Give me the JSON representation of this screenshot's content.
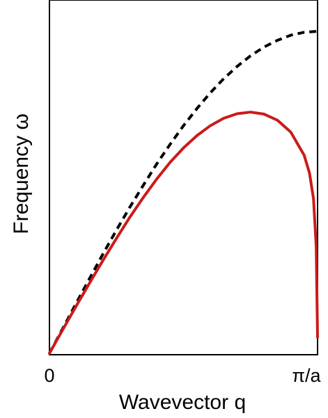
{
  "chart_data": {
    "type": "line",
    "title": "",
    "xlabel": "Wavevector q",
    "ylabel": "Frequency ω",
    "x_ticks": [
      "0",
      "π/a"
    ],
    "xlim": [
      0,
      1
    ],
    "ylim": [
      0,
      1
    ],
    "grid": false,
    "legend": "none",
    "series": [
      {
        "style": "dashed",
        "color": "#000000",
        "x": [
          0.0,
          0.05,
          0.1,
          0.15,
          0.2,
          0.25,
          0.3,
          0.35,
          0.4,
          0.45,
          0.5,
          0.55,
          0.6,
          0.65,
          0.7,
          0.75,
          0.8,
          0.85,
          0.9,
          0.95,
          1.0
        ],
        "y": [
          0.0,
          0.078,
          0.156,
          0.233,
          0.309,
          0.383,
          0.454,
          0.522,
          0.588,
          0.649,
          0.707,
          0.76,
          0.809,
          0.853,
          0.891,
          0.924,
          0.951,
          0.972,
          0.988,
          0.997,
          1.0
        ]
      },
      {
        "style": "solid",
        "color": "#cc1a1a",
        "x": [
          0.0,
          0.05,
          0.1,
          0.15,
          0.2,
          0.25,
          0.3,
          0.35,
          0.4,
          0.45,
          0.5,
          0.55,
          0.6,
          0.65,
          0.7,
          0.75,
          0.8,
          0.85,
          0.9,
          0.95,
          0.97,
          0.985,
          0.995,
          1.0
        ],
        "y": [
          0.0,
          0.074,
          0.147,
          0.219,
          0.289,
          0.357,
          0.423,
          0.484,
          0.541,
          0.593,
          0.638,
          0.676,
          0.707,
          0.73,
          0.744,
          0.749,
          0.743,
          0.724,
          0.687,
          0.615,
          0.56,
          0.48,
          0.33,
          0.05
        ]
      }
    ]
  }
}
